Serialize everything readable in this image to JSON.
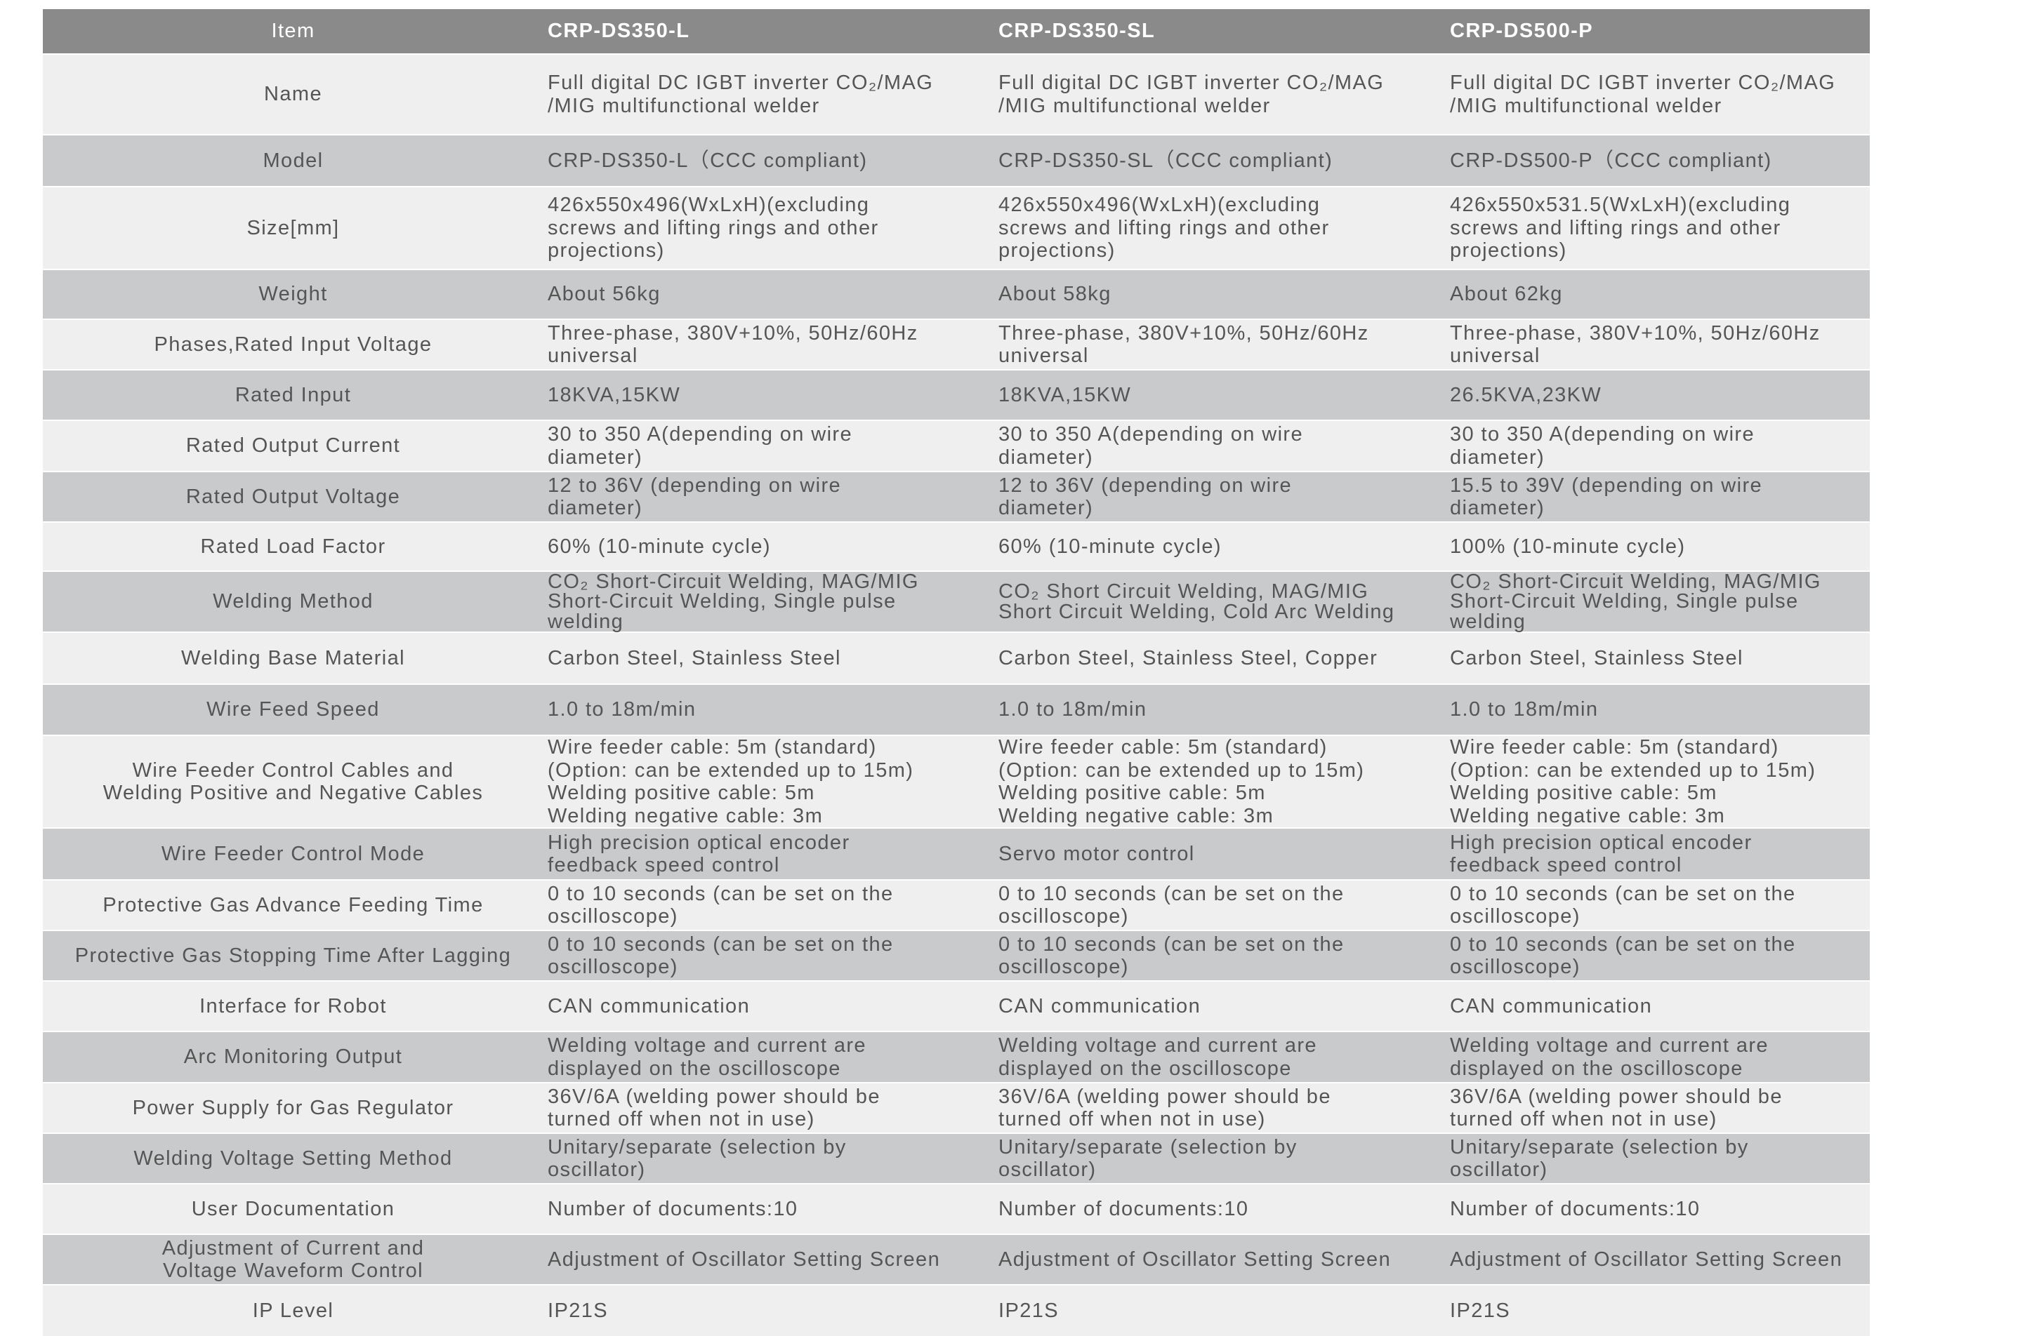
{
  "header": {
    "item": "Item",
    "models": [
      "CRP-DS350-L",
      "CRP-DS350-SL",
      "CRP-DS500-P"
    ]
  },
  "colors": {
    "header_bg": "#8a8a8a",
    "row_light": "#efefef",
    "row_dark": "#c9cacb",
    "text": "#555555"
  },
  "rows": [
    {
      "label": "Name",
      "values": [
        "Full digital DC IGBT inverter CO₂/MAG\n/MIG multifunctional welder",
        "Full digital DC IGBT inverter CO₂/MAG\n/MIG multifunctional welder",
        "Full digital DC IGBT inverter CO₂/MAG\n/MIG multifunctional welder"
      ]
    },
    {
      "label": "Model",
      "values": [
        "CRP-DS350-L（CCC compliant)",
        "CRP-DS350-SL（CCC compliant)",
        "CRP-DS500-P（CCC compliant)"
      ]
    },
    {
      "label": "Size[mm]",
      "values": [
        "426x550x496(WxLxH)(excluding\nscrews and lifting rings and other\nprojections)",
        "426x550x496(WxLxH)(excluding\nscrews and lifting rings and other\nprojections)",
        "426x550x531.5(WxLxH)(excluding\nscrews and lifting rings and other\nprojections)"
      ]
    },
    {
      "label": "Weight",
      "values": [
        "About 56kg",
        "About 58kg",
        "About 62kg"
      ]
    },
    {
      "label": "Phases,Rated Input Voltage",
      "values": [
        "Three-phase, 380V+10%, 50Hz/60Hz\nuniversal",
        "Three-phase, 380V+10%, 50Hz/60Hz\nuniversal",
        "Three-phase, 380V+10%, 50Hz/60Hz\nuniversal"
      ]
    },
    {
      "label": "Rated Input",
      "values": [
        "18KVA,15KW",
        "18KVA,15KW",
        "26.5KVA,23KW"
      ]
    },
    {
      "label": "Rated Output Current",
      "values": [
        "30 to 350 A(depending on wire\ndiameter)",
        "30 to 350 A(depending on wire\ndiameter)",
        "30 to 350 A(depending on wire\ndiameter)"
      ]
    },
    {
      "label": "Rated Output Voltage",
      "values": [
        "12 to 36V (depending on wire\ndiameter)",
        "12 to 36V (depending on wire\ndiameter)",
        "15.5 to 39V (depending on wire\ndiameter)"
      ]
    },
    {
      "label": "Rated Load Factor",
      "values": [
        "60% (10-minute cycle)",
        "60% (10-minute cycle)",
        "100% (10-minute cycle)"
      ]
    },
    {
      "label": "Welding Method",
      "values": [
        "CO₂ Short-Circuit Welding, MAG/MIG\nShort-Circuit Welding, Single pulse\nwelding",
        "CO₂ Short Circuit Welding, MAG/MIG\nShort Circuit Welding, Cold Arc Welding",
        "CO₂ Short-Circuit Welding, MAG/MIG\nShort-Circuit Welding, Single pulse\nwelding"
      ]
    },
    {
      "label": "Welding Base Material",
      "values": [
        "Carbon Steel, Stainless Steel",
        "Carbon Steel, Stainless Steel, Copper",
        "Carbon Steel, Stainless Steel"
      ]
    },
    {
      "label": "Wire Feed Speed",
      "values": [
        "1.0 to 18m/min",
        "1.0 to 18m/min",
        "1.0 to 18m/min"
      ]
    },
    {
      "label": "Wire Feeder Control Cables and\nWelding Positive and Negative Cables",
      "values": [
        "Wire feeder cable: 5m (standard)\n(Option: can be extended up to 15m)\nWelding positive cable: 5m\nWelding negative cable: 3m",
        "Wire feeder cable: 5m (standard)\n(Option: can be extended up to 15m)\nWelding positive cable: 5m\nWelding negative cable: 3m",
        "Wire feeder cable: 5m (standard)\n(Option: can be extended up to 15m)\nWelding positive cable: 5m\nWelding negative cable: 3m"
      ]
    },
    {
      "label": "Wire Feeder Control Mode",
      "values": [
        "High precision optical encoder\nfeedback speed control",
        "Servo motor control",
        "High precision optical encoder\nfeedback speed control"
      ]
    },
    {
      "label": "Protective Gas Advance Feeding Time",
      "values": [
        "0 to 10 seconds (can be set on the\noscilloscope)",
        "0 to 10 seconds (can be set on the\noscilloscope)",
        "0 to 10 seconds (can be set on the\noscilloscope)"
      ]
    },
    {
      "label": "Protective Gas Stopping Time After Lagging",
      "values": [
        "0 to 10 seconds (can be set on the\noscilloscope)",
        "0 to 10 seconds (can be set on the\noscilloscope)",
        "0 to 10 seconds (can be set on the\noscilloscope)"
      ]
    },
    {
      "label": "Interface for Robot",
      "values": [
        "CAN communication",
        "CAN communication",
        "CAN communication"
      ]
    },
    {
      "label": "Arc Monitoring Output",
      "values": [
        "Welding voltage and current are\ndisplayed on the oscilloscope",
        "Welding voltage and current are\ndisplayed on the oscilloscope",
        "Welding voltage and current are\ndisplayed on the oscilloscope"
      ]
    },
    {
      "label": "Power Supply for Gas Regulator",
      "values": [
        "36V/6A (welding power should be\nturned off when not in use)",
        "36V/6A (welding power should be\nturned off when not in use)",
        "36V/6A (welding power should be\nturned off when not in use)"
      ]
    },
    {
      "label": "Welding Voltage Setting Method",
      "values": [
        "Unitary/separate (selection by\noscillator)",
        "Unitary/separate (selection by\noscillator)",
        "Unitary/separate (selection by\noscillator)"
      ]
    },
    {
      "label": "User Documentation",
      "values": [
        "Number of documents:10",
        "Number of documents:10",
        "Number of documents:10"
      ]
    },
    {
      "label": "Adjustment of Current and\nVoltage Waveform Control",
      "values": [
        "Adjustment of Oscillator Setting Screen",
        "Adjustment of Oscillator Setting Screen",
        "Adjustment of Oscillator Setting Screen"
      ]
    },
    {
      "label": "IP Level",
      "values": [
        "IP21S",
        "IP21S",
        "IP21S"
      ]
    }
  ]
}
